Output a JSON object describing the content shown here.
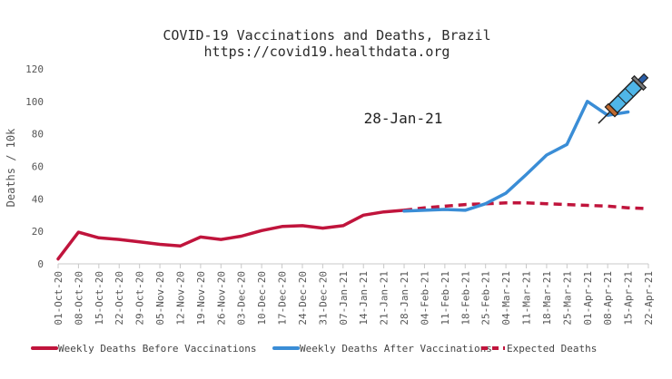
{
  "chart_data": {
    "type": "line",
    "title": "COVID-19 Vaccinations and Deaths, Brazil",
    "subtitle": "https://covid19.healthdata.org",
    "xlabel": "",
    "ylabel": "Deaths / 10k",
    "ylim": [
      0,
      120
    ],
    "yticks": [
      0,
      20,
      40,
      60,
      80,
      100,
      120
    ],
    "grid": false,
    "legend_position": "bottom",
    "annotation": "28-Jan-21",
    "categories": [
      "01-Oct-20",
      "08-Oct-20",
      "15-Oct-20",
      "22-Oct-20",
      "29-Oct-20",
      "05-Nov-20",
      "12-Nov-20",
      "19-Nov-20",
      "26-Nov-20",
      "03-Dec-20",
      "10-Dec-20",
      "17-Dec-20",
      "24-Dec-20",
      "31-Dec-20",
      "07-Jan-21",
      "14-Jan-21",
      "21-Jan-21",
      "28-Jan-21",
      "04-Feb-21",
      "11-Feb-21",
      "18-Feb-21",
      "25-Feb-21",
      "04-Mar-21",
      "11-Mar-21",
      "18-Mar-21",
      "25-Mar-21",
      "01-Apr-21",
      "08-Apr-21",
      "15-Apr-21",
      "22-Apr-21"
    ],
    "series": [
      {
        "name": "Weekly Deaths Before Vaccinations",
        "color": "#c0143c",
        "style": "solid",
        "values": [
          3,
          19.5,
          16,
          15,
          13.5,
          12,
          11,
          16.5,
          15,
          17,
          20.5,
          23,
          23.5,
          22,
          23.5,
          30,
          32,
          33,
          null,
          null,
          null,
          null,
          null,
          null,
          null,
          null,
          null,
          null,
          null,
          null
        ]
      },
      {
        "name": "Weekly Deaths After Vaccinations",
        "color": "#3a8dd6",
        "style": "solid",
        "values": [
          null,
          null,
          null,
          null,
          null,
          null,
          null,
          null,
          null,
          null,
          null,
          null,
          null,
          null,
          null,
          null,
          null,
          32.5,
          33,
          33.5,
          33,
          37,
          43.5,
          55,
          67,
          73.5,
          100,
          91.5,
          93.5,
          null
        ]
      },
      {
        "name": "Expected Deaths",
        "color": "#c0143c",
        "style": "dashed",
        "values": [
          null,
          null,
          null,
          null,
          null,
          null,
          null,
          null,
          null,
          null,
          null,
          null,
          null,
          null,
          null,
          null,
          null,
          33,
          34.5,
          35.5,
          36.5,
          37,
          37.5,
          37.5,
          37,
          36.5,
          36,
          35.5,
          34.5,
          34
        ]
      }
    ]
  },
  "graphic": {
    "icon": "syringe-icon"
  }
}
